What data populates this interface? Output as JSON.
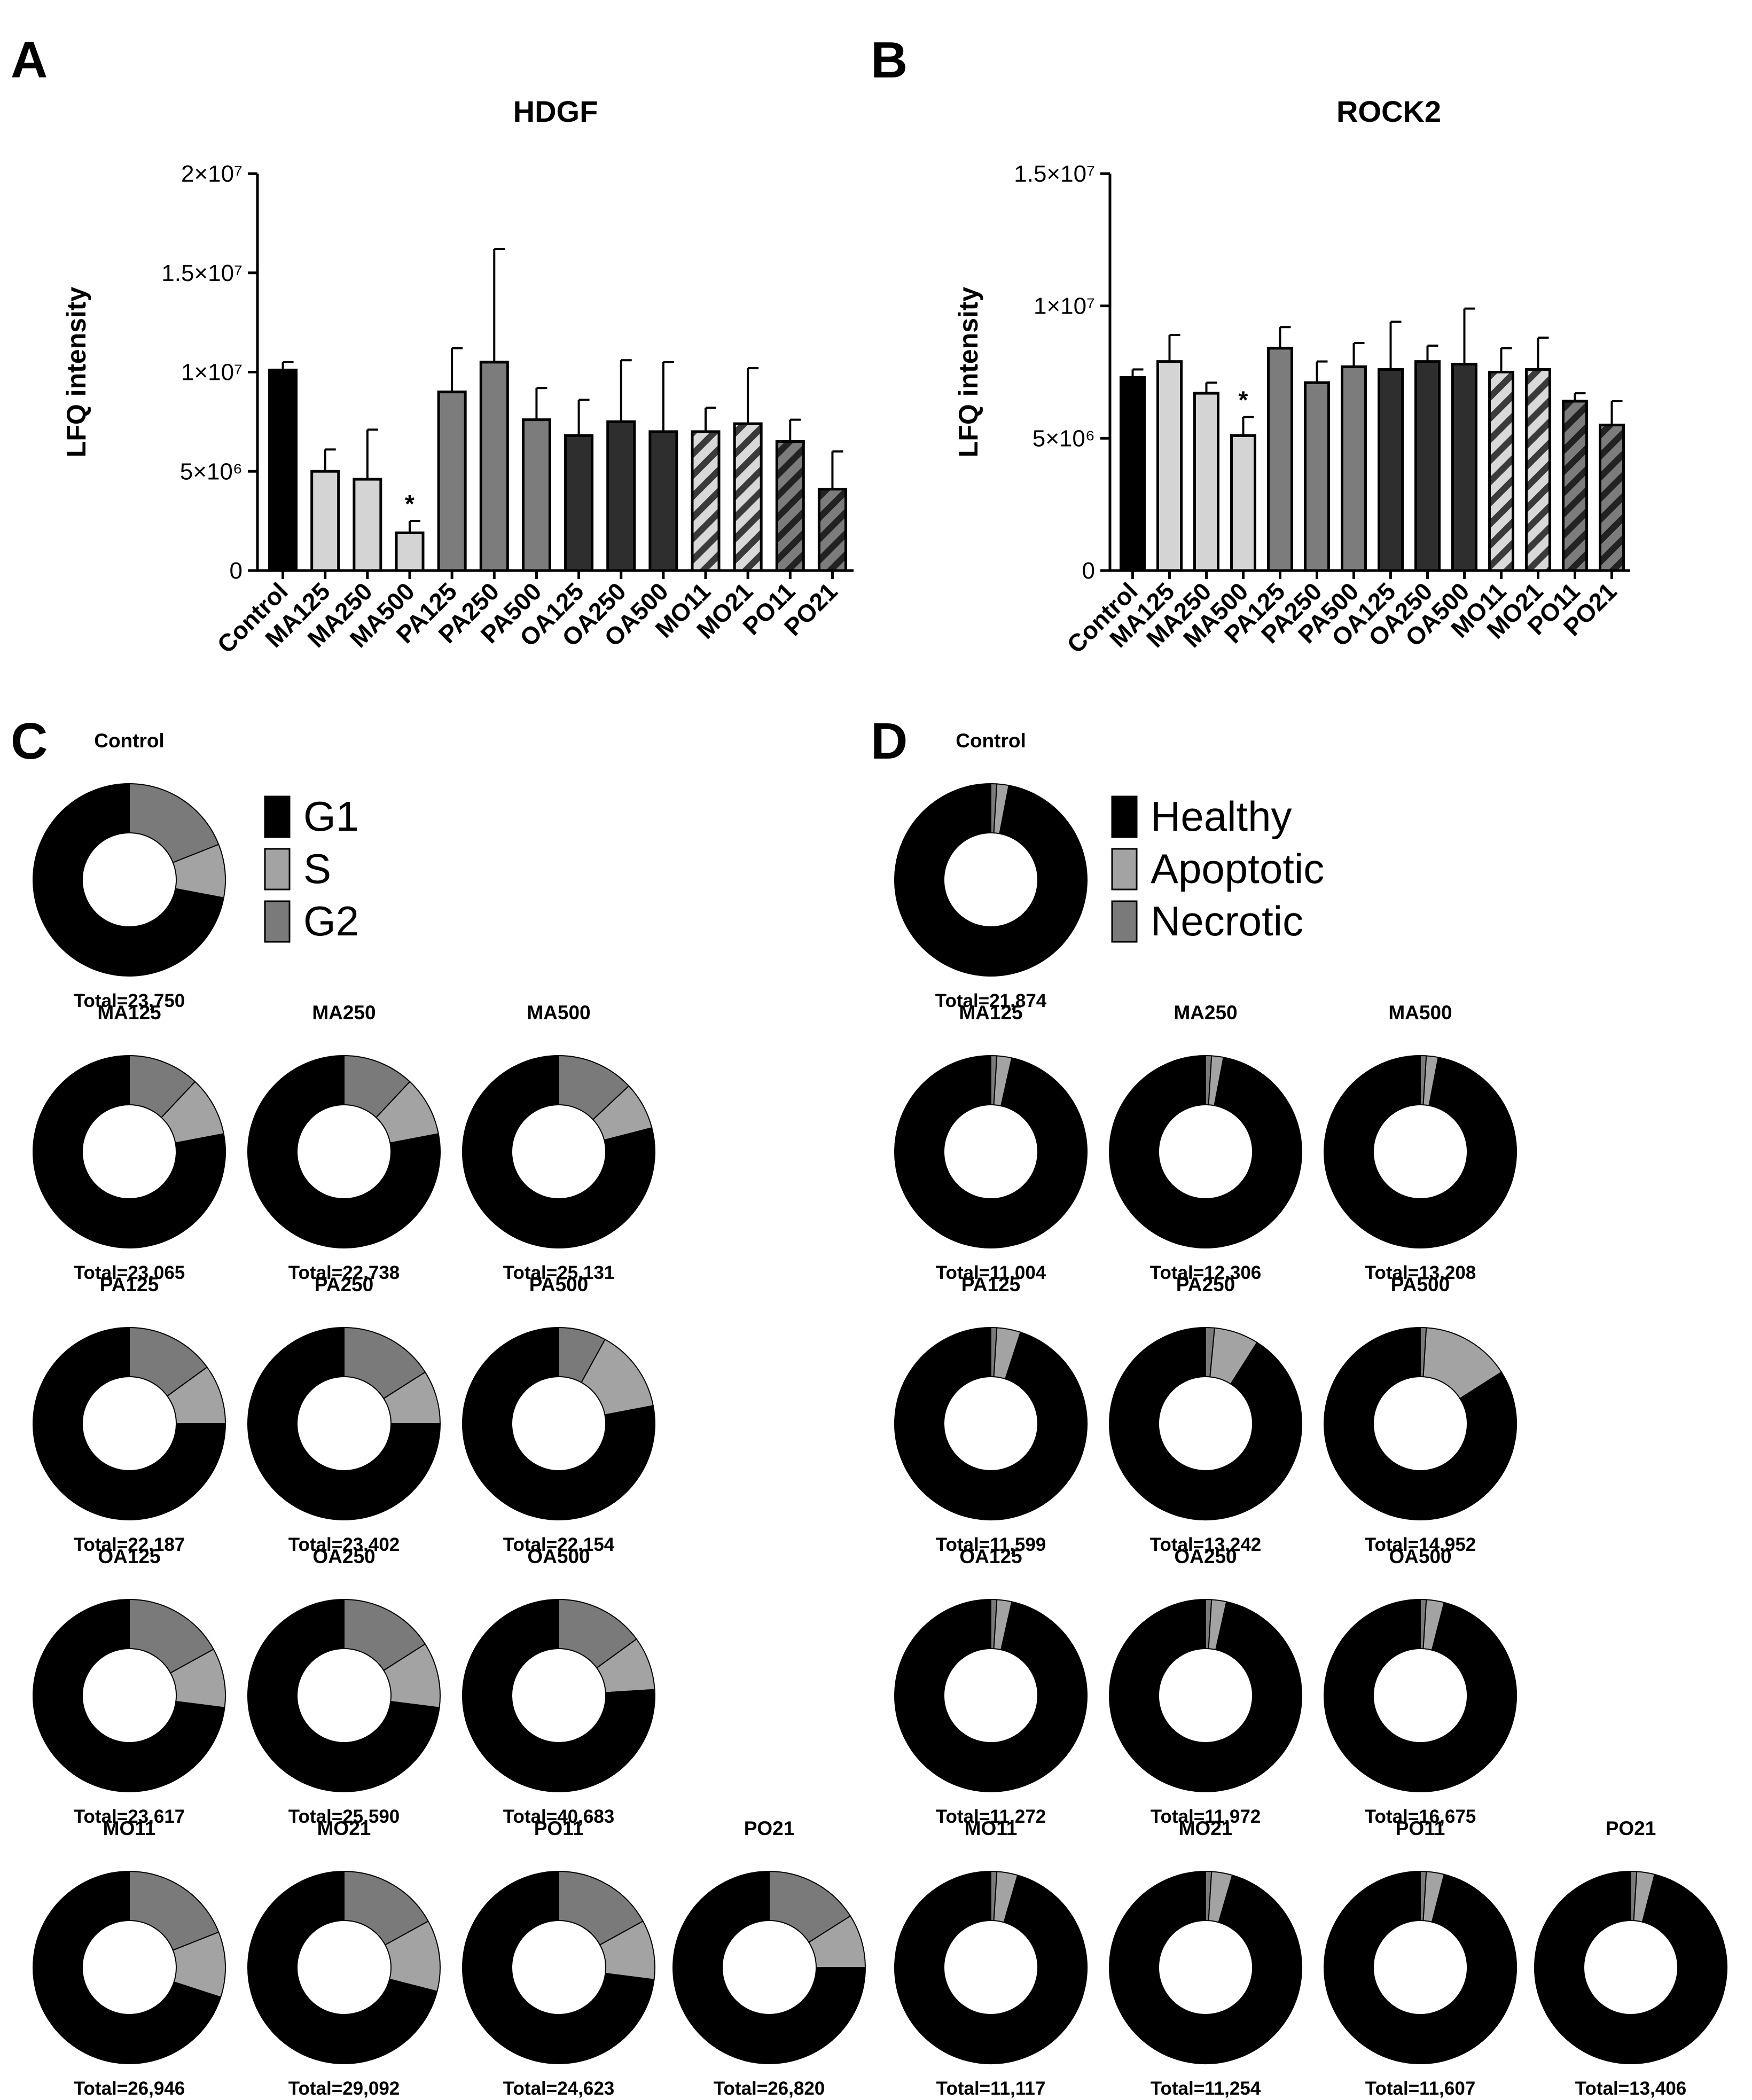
{
  "colors": {
    "Control": "#000000",
    "MA": "#d4d4d4",
    "PA": "#7c7c7c",
    "OA": "#2e2e2e",
    "MO": "hatch-light",
    "PO": "hatch-dark",
    "G1": "#000000",
    "S": "#a3a3a3",
    "G2": "#7a7a7a",
    "Healthy": "#000000",
    "Apoptotic": "#a3a3a3",
    "Necrotic": "#7a7a7a"
  },
  "chart_data": [
    {
      "panel": "A",
      "type": "bar",
      "title": "HDGF",
      "ylabel": "LFQ intensity",
      "xlabel": "",
      "ylim": [
        0,
        20000000
      ],
      "yticks": [
        {
          "value": 0,
          "label": "0"
        },
        {
          "value": 5000000,
          "label": "5×10⁶"
        },
        {
          "value": 10000000,
          "label": "1×10⁷"
        },
        {
          "value": 15000000,
          "label": "1.5×10⁷"
        },
        {
          "value": 20000000,
          "label": "2×10⁷"
        }
      ],
      "categories": [
        "Control",
        "MA125",
        "MA250",
        "MA500",
        "PA125",
        "PA250",
        "PA500",
        "OA125",
        "OA250",
        "OA500",
        "MO11",
        "MO21",
        "PO11",
        "PO21"
      ],
      "groups": [
        "Control",
        "MA",
        "MA",
        "MA",
        "PA",
        "PA",
        "PA",
        "OA",
        "OA",
        "OA",
        "MO",
        "MO",
        "PO",
        "PO"
      ],
      "values": [
        10100000,
        5000000,
        4600000,
        1900000,
        9000000,
        10500000,
        7600000,
        6800000,
        7500000,
        7000000,
        7000000,
        7400000,
        6500000,
        4100000
      ],
      "errors": [
        400000,
        1100000,
        2500000,
        600000,
        2200000,
        5700000,
        1600000,
        1800000,
        3100000,
        3500000,
        1200000,
        2800000,
        1100000,
        1900000
      ],
      "annotations": [
        {
          "category": "MA500",
          "text": "*"
        }
      ]
    },
    {
      "panel": "B",
      "type": "bar",
      "title": "ROCK2",
      "ylabel": "LFQ intensity",
      "xlabel": "",
      "ylim": [
        0,
        15000000
      ],
      "yticks": [
        {
          "value": 0,
          "label": "0"
        },
        {
          "value": 5000000,
          "label": "5×10⁶"
        },
        {
          "value": 10000000,
          "label": "1×10⁷"
        },
        {
          "value": 15000000,
          "label": "1.5×10⁷"
        }
      ],
      "categories": [
        "Control",
        "MA125",
        "MA250",
        "MA500",
        "PA125",
        "PA250",
        "PA500",
        "OA125",
        "OA250",
        "OA500",
        "MO11",
        "MO21",
        "PO11",
        "PO21"
      ],
      "groups": [
        "Control",
        "MA",
        "MA",
        "MA",
        "PA",
        "PA",
        "PA",
        "OA",
        "OA",
        "OA",
        "MO",
        "MO",
        "PO",
        "PO"
      ],
      "values": [
        7300000,
        7900000,
        6700000,
        5100000,
        8400000,
        7100000,
        7700000,
        7600000,
        7900000,
        7800000,
        7500000,
        7600000,
        6400000,
        5500000
      ],
      "errors": [
        300000,
        1000000,
        400000,
        700000,
        800000,
        800000,
        900000,
        1800000,
        600000,
        2100000,
        900000,
        1200000,
        300000,
        900000
      ],
      "annotations": [
        {
          "category": "MA500",
          "text": "*"
        }
      ]
    },
    {
      "panel": "C",
      "type": "pie",
      "subtype": "donut",
      "legend": [
        "G1",
        "S",
        "G2"
      ],
      "legend_position": "right of Control",
      "charts": [
        {
          "name": "Control",
          "total": "Total=23,750",
          "values": [
            72,
            9,
            19
          ]
        },
        {
          "name": "MA125",
          "total": "Total=23,065",
          "values": [
            78,
            10,
            12
          ]
        },
        {
          "name": "MA250",
          "total": "Total=22,738",
          "values": [
            78,
            10,
            12
          ]
        },
        {
          "name": "MA500",
          "total": "Total=25,131",
          "values": [
            79,
            8,
            13
          ]
        },
        {
          "name": "PA125",
          "total": "Total=22,187",
          "values": [
            75,
            10,
            15
          ]
        },
        {
          "name": "PA250",
          "total": "Total=23,402",
          "values": [
            75,
            9,
            16
          ]
        },
        {
          "name": "PA500",
          "total": "Total=22,154",
          "values": [
            78,
            14,
            8
          ]
        },
        {
          "name": "OA125",
          "total": "Total=23,617",
          "values": [
            73,
            10,
            17
          ]
        },
        {
          "name": "OA250",
          "total": "Total=25,590",
          "values": [
            73,
            11,
            16
          ]
        },
        {
          "name": "OA500",
          "total": "Total=40,683",
          "values": [
            76,
            9,
            15
          ]
        },
        {
          "name": "MO11",
          "total": "Total=26,946",
          "values": [
            70,
            11,
            19
          ]
        },
        {
          "name": "MO21",
          "total": "Total=29,092",
          "values": [
            71,
            12,
            17
          ]
        },
        {
          "name": "PO11",
          "total": "Total=24,623",
          "values": [
            73,
            10,
            17
          ]
        },
        {
          "name": "PO21",
          "total": "Total=26,820",
          "values": [
            75,
            9,
            16
          ]
        }
      ]
    },
    {
      "panel": "D",
      "type": "pie",
      "subtype": "donut",
      "legend": [
        "Healthy",
        "Apoptotic",
        "Necrotic"
      ],
      "legend_position": "right of Control",
      "charts": [
        {
          "name": "Control",
          "total": "Total=21,874",
          "values": [
            97,
            2,
            1
          ]
        },
        {
          "name": "MA125",
          "total": "Total=11,004",
          "values": [
            96.5,
            2.5,
            1
          ]
        },
        {
          "name": "MA250",
          "total": "Total=12,306",
          "values": [
            97,
            2,
            1
          ]
        },
        {
          "name": "MA500",
          "total": "Total=13,208",
          "values": [
            97,
            2,
            1
          ]
        },
        {
          "name": "PA125",
          "total": "Total=11,599",
          "values": [
            95,
            4,
            1
          ]
        },
        {
          "name": "PA250",
          "total": "Total=13,242",
          "values": [
            91,
            7.5,
            1.5
          ]
        },
        {
          "name": "PA500",
          "total": "Total=14,952",
          "values": [
            84,
            15,
            1
          ]
        },
        {
          "name": "OA125",
          "total": "Total=11,272",
          "values": [
            96.5,
            2.5,
            1
          ]
        },
        {
          "name": "OA250",
          "total": "Total=11,972",
          "values": [
            96.5,
            2.5,
            1
          ]
        },
        {
          "name": "OA500",
          "total": "Total=16,675",
          "values": [
            96,
            3,
            1
          ]
        },
        {
          "name": "MO11",
          "total": "Total=11,117",
          "values": [
            95.5,
            3.5,
            1
          ]
        },
        {
          "name": "MO21",
          "total": "Total=11,254",
          "values": [
            95.5,
            3.5,
            1
          ]
        },
        {
          "name": "PO11",
          "total": "Total=11,607",
          "values": [
            96,
            3,
            1
          ]
        },
        {
          "name": "PO21",
          "total": "Total=13,406",
          "values": [
            96,
            3,
            1
          ]
        }
      ]
    }
  ]
}
